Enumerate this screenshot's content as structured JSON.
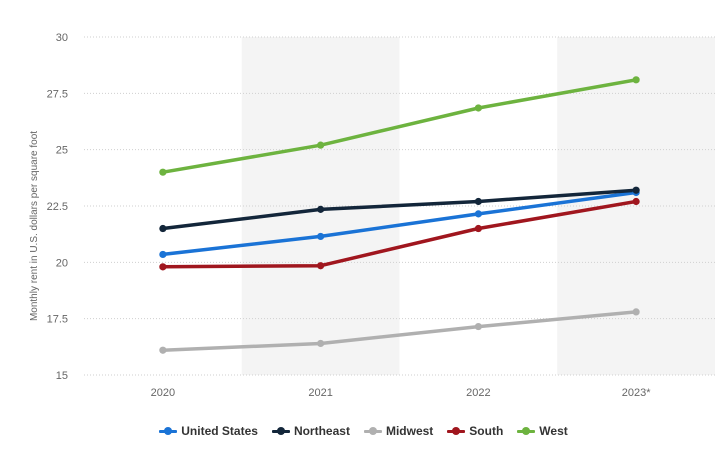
{
  "chart_data": {
    "type": "line",
    "categories": [
      "2020",
      "2021",
      "2022",
      "2023*"
    ],
    "ylabel": "Monthly rent in U.S. dollars per square foot",
    "ylim": [
      15,
      30
    ],
    "yticks": [
      "15",
      "17.5",
      "20",
      "22.5",
      "25",
      "27.5",
      "30"
    ],
    "grid": "horizontal dashed",
    "legend_position": "bottom-center",
    "series": [
      {
        "name": "United States",
        "color": "#1a73d6",
        "values": [
          20.35,
          21.15,
          22.15,
          23.1
        ]
      },
      {
        "name": "Northeast",
        "color": "#13263a",
        "values": [
          21.5,
          22.35,
          22.7,
          23.2
        ]
      },
      {
        "name": "Midwest",
        "color": "#b0b0b0",
        "values": [
          16.1,
          16.4,
          17.15,
          17.8
        ]
      },
      {
        "name": "South",
        "color": "#a0161e",
        "values": [
          19.8,
          19.85,
          21.5,
          22.7
        ]
      },
      {
        "name": "West",
        "color": "#6db33f",
        "values": [
          24.0,
          25.2,
          26.85,
          28.1
        ]
      }
    ]
  }
}
